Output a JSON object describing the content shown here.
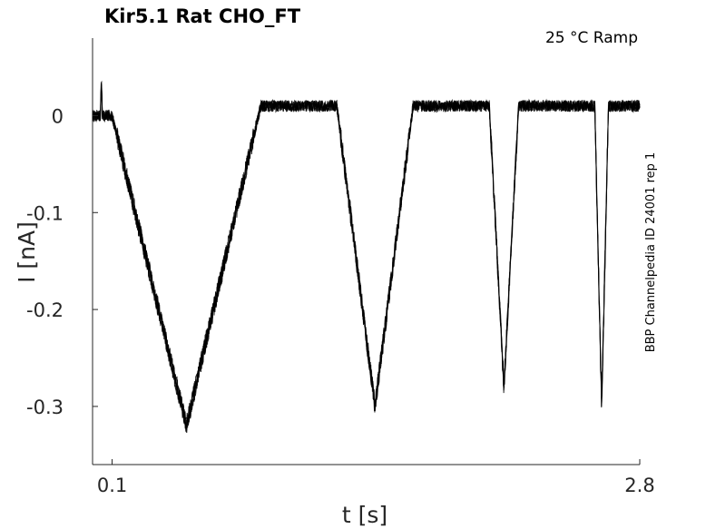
{
  "chart_data": {
    "type": "line",
    "title": "Kir5.1  Rat  CHO_FT",
    "annotation": "25 °C  Ramp",
    "side_label": "BBP Channelpedia ID 24001 rep 1",
    "xlabel": "t [s]",
    "ylabel": "I [nA]",
    "xlim": [
      0.0,
      2.8
    ],
    "ylim": [
      -0.36,
      0.08
    ],
    "x_ticks": [
      0.1,
      2.8
    ],
    "x_tick_labels": [
      "0.1",
      "2.8"
    ],
    "y_ticks": [
      0,
      -0.1,
      -0.2,
      -0.3
    ],
    "y_tick_labels": [
      "0",
      "-0.1",
      "-0.2",
      "-0.3"
    ],
    "grid": false,
    "line_color": "#000000",
    "series": [
      {
        "values_note": "",
        "x": [
          0.0,
          0.04,
          0.045,
          0.05,
          0.1,
          0.48,
          0.86,
          1.25,
          1.445,
          1.64,
          2.03,
          2.105,
          2.18,
          2.57,
          2.605,
          2.64,
          2.8
        ],
        "y": [
          0.0,
          0.0,
          0.04,
          0.0,
          0.0,
          -0.32,
          0.01,
          0.01,
          -0.3,
          0.01,
          0.01,
          -0.28,
          0.01,
          0.01,
          -0.3,
          0.01,
          0.01
        ]
      }
    ]
  }
}
